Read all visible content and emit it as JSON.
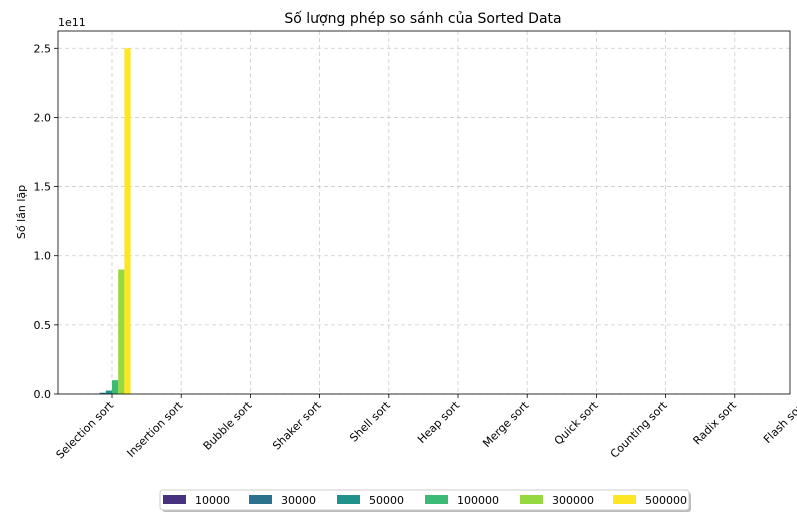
{
  "chart_data": {
    "type": "bar",
    "title": "Số lượng phép so sánh của Sorted Data",
    "xlabel": "",
    "ylabel": "Số lần lặp",
    "y_offset_text": "1e11",
    "y_scale": 100000000000,
    "ylim": [
      0,
      2.625
    ],
    "yticks": [
      "0.0",
      "0.5",
      "1.0",
      "1.5",
      "2.0",
      "2.5"
    ],
    "grid": true,
    "legend_position": "bottom-center",
    "categories": [
      "Selection sort",
      "Insertion sort",
      "Bubble sort",
      "Shaker sort",
      "Shell sort",
      "Heap sort",
      "Merge sort",
      "Quick sort",
      "Counting sort",
      "Radix sort",
      "Flash sort"
    ],
    "series": [
      {
        "name": "10000",
        "color": "#46327e",
        "values": [
          0.001,
          0,
          0,
          0,
          0,
          0,
          0,
          0,
          0,
          0,
          0
        ]
      },
      {
        "name": "30000",
        "color": "#365c8d",
        "values": [
          0.009,
          0,
          0,
          0,
          0,
          0,
          0,
          0,
          0,
          0,
          0
        ]
      },
      {
        "name": "50000",
        "color": "#277f8e",
        "values": [
          0.025,
          0,
          0,
          0,
          0,
          0,
          0,
          0,
          0,
          0,
          0
        ]
      },
      {
        "name": "100000",
        "color": "#1fa187",
        "values": [
          0.1,
          0,
          0,
          0,
          0,
          0,
          0,
          0,
          0,
          0,
          0
        ]
      },
      {
        "name": "300000",
        "color": "#4ac16d",
        "values": [
          0.9,
          0,
          0,
          0,
          0,
          0,
          0,
          0,
          0,
          0,
          0
        ]
      },
      {
        "name": "500000",
        "color": "#fde725",
        "values": [
          2.5,
          0,
          0,
          0,
          0,
          0,
          0,
          0,
          0,
          0,
          0
        ]
      }
    ],
    "bar_colors_override": [
      "#46327e",
      "#2c728e",
      "#21918c",
      "#3bbb75",
      "#95d840",
      "#fde725"
    ]
  }
}
